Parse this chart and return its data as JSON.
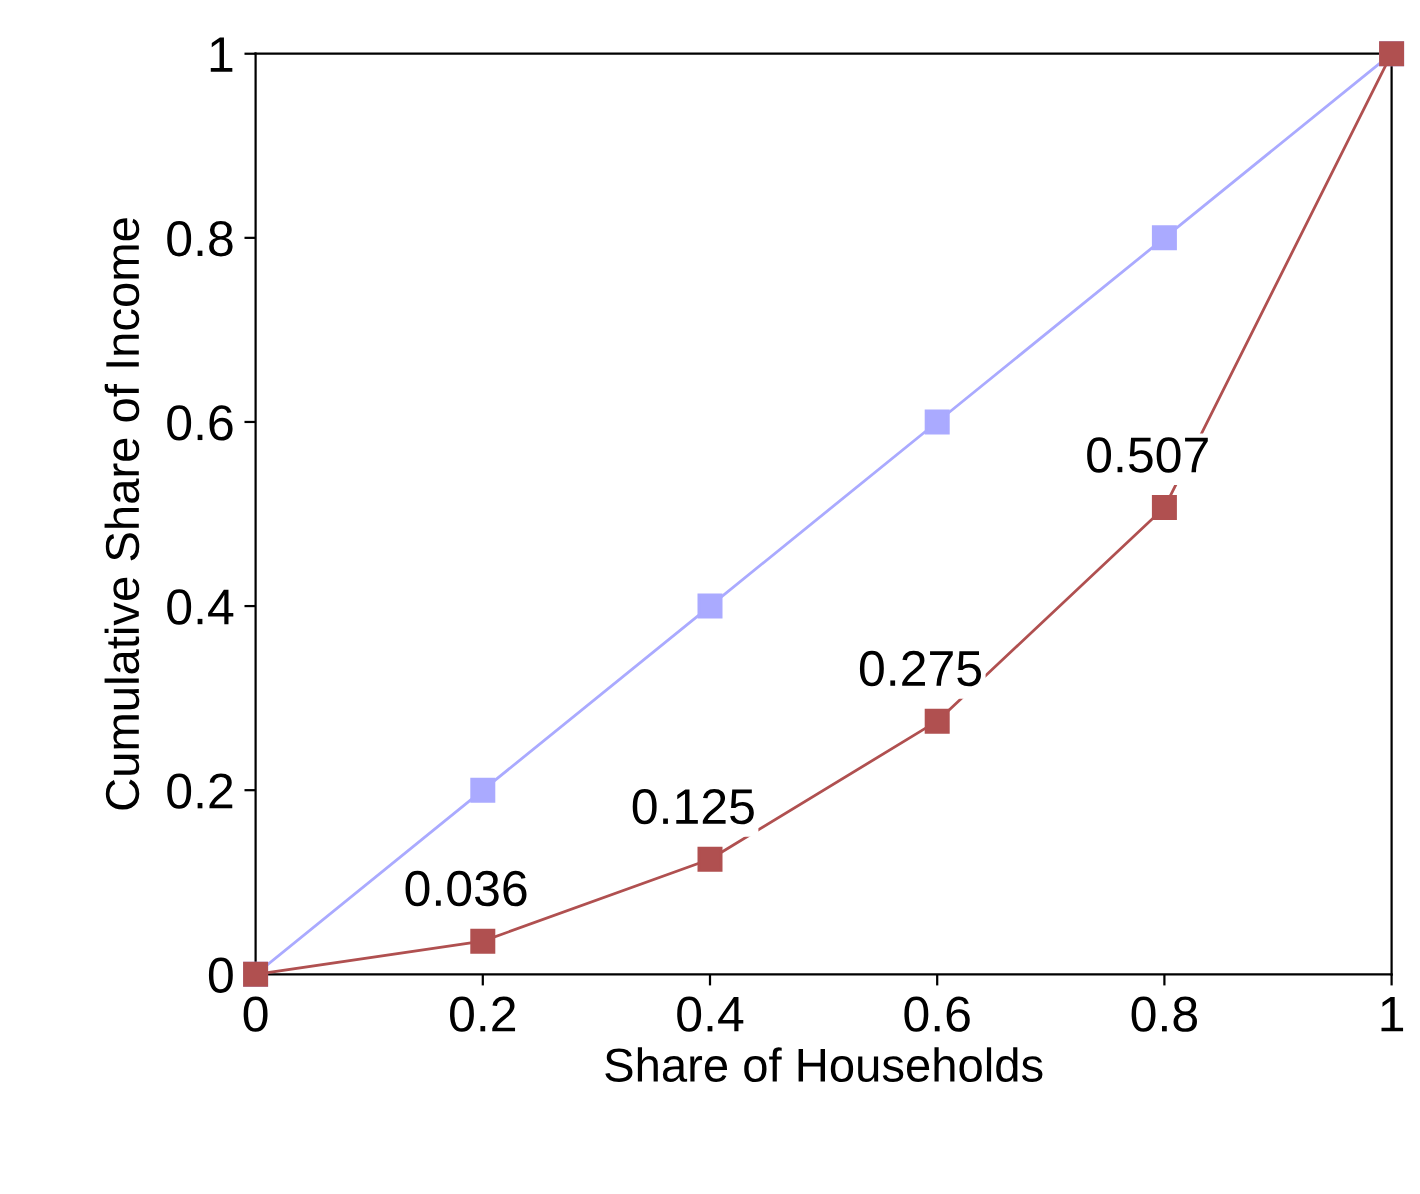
{
  "chart_data": {
    "type": "line",
    "xlabel": "Share of Households",
    "ylabel": "Cumulative Share of Income",
    "x": [
      0,
      0.2,
      0.4,
      0.6,
      0.8,
      1
    ],
    "series": [
      {
        "color": "#aaaaff",
        "values": [
          0,
          0.2,
          0.4,
          0.6,
          0.8,
          1
        ]
      },
      {
        "color": "#b05050",
        "values": [
          0,
          0.036,
          0.125,
          0.275,
          0.507,
          1
        ],
        "value_labels": [
          null,
          "0.036",
          "0.125",
          "0.275",
          "0.507",
          null
        ]
      }
    ],
    "xlim": [
      0,
      1
    ],
    "ylim": [
      0,
      1
    ],
    "xticks": [
      0,
      0.2,
      0.4,
      0.6,
      0.8,
      1
    ],
    "yticks": [
      0,
      0.2,
      0.4,
      0.6,
      0.8,
      1
    ],
    "marker": "square",
    "line_style": "solid",
    "grid": false,
    "legend": false
  }
}
